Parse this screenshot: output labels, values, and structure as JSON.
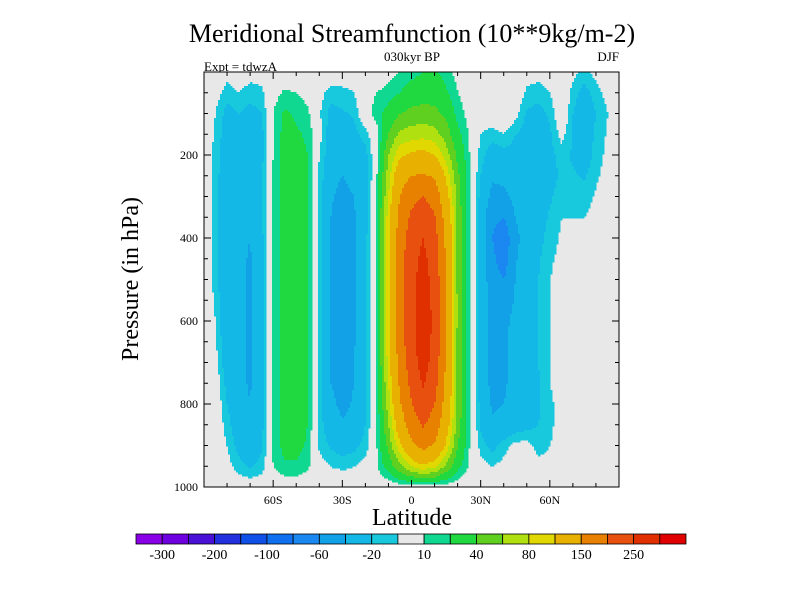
{
  "chart_data": {
    "type": "heatmap",
    "title": "Meridional Streamfunction (10**9kg/m-2)",
    "subtitle": "030kyr BP",
    "left_label": "Expt = tdwzA",
    "right_label": "DJF",
    "xlabel": "Latitude",
    "ylabel": "Pressure (in hPa)",
    "xlim": [
      -90,
      90
    ],
    "ylim": [
      1000,
      0
    ],
    "x_ticks": [
      {
        "value": -60,
        "label": "60S"
      },
      {
        "value": -30,
        "label": "30S"
      },
      {
        "value": 0,
        "label": "0"
      },
      {
        "value": 30,
        "label": "30N"
      },
      {
        "value": 60,
        "label": "60N"
      }
    ],
    "y_ticks": [
      {
        "value": 200,
        "label": "200"
      },
      {
        "value": 400,
        "label": "400"
      },
      {
        "value": 600,
        "label": "600"
      },
      {
        "value": 800,
        "label": "800"
      },
      {
        "value": 1000,
        "label": "1000"
      }
    ],
    "levels": [
      -300,
      -250,
      -200,
      -150,
      -100,
      -80,
      -60,
      -40,
      -20,
      -10,
      10,
      20,
      40,
      60,
      80,
      100,
      150,
      200,
      250,
      300
    ],
    "colors": [
      "#8a00e6",
      "#6e00e0",
      "#4a10d8",
      "#2230e0",
      "#1050e8",
      "#1070f0",
      "#1a88f0",
      "#12a0e6",
      "#14b8e6",
      "#18c8dc",
      "#e8e8e8",
      "#10d890",
      "#20d840",
      "#60d020",
      "#b0e010",
      "#e0d800",
      "#e8b000",
      "#e88000",
      "#e85010",
      "#e03000",
      "#e00000"
    ],
    "colorbar_labels": [
      {
        "level": -300,
        "label": "-300"
      },
      {
        "level": -200,
        "label": "-200"
      },
      {
        "level": -100,
        "label": "-100"
      },
      {
        "level": -60,
        "label": "-60"
      },
      {
        "level": -20,
        "label": "-20"
      },
      {
        "level": 10,
        "label": "10"
      },
      {
        "level": 40,
        "label": "40"
      },
      {
        "level": 80,
        "label": "80"
      },
      {
        "level": 150,
        "label": "150"
      },
      {
        "level": 250,
        "label": "250"
      }
    ],
    "field_latitudes": [
      -90,
      -85,
      -80,
      -75,
      -70,
      -65,
      -60,
      -55,
      -50,
      -45,
      -40,
      -35,
      -30,
      -25,
      -20,
      -15,
      -10,
      -5,
      0,
      5,
      10,
      15,
      20,
      25,
      30,
      35,
      40,
      45,
      50,
      55,
      60,
      65,
      70,
      75,
      80,
      85,
      90
    ],
    "field_pressures": [
      0,
      50,
      100,
      150,
      200,
      250,
      300,
      350,
      400,
      450,
      500,
      550,
      600,
      650,
      700,
      750,
      800,
      850,
      900,
      950,
      1000
    ],
    "field_values": [
      [
        0,
        0,
        -5,
        0,
        -5,
        -5,
        0,
        0,
        0,
        5,
        0,
        0,
        -5,
        -5,
        0,
        0,
        5,
        10,
        15,
        20,
        22,
        15,
        5,
        0,
        0,
        0,
        0,
        0,
        -5,
        -5,
        0,
        0,
        -5,
        -15,
        -5,
        0,
        0
      ],
      [
        0,
        -5,
        -15,
        -10,
        -15,
        -12,
        5,
        12,
        10,
        5,
        -5,
        -15,
        -12,
        -10,
        5,
        10,
        15,
        20,
        28,
        30,
        32,
        22,
        10,
        5,
        0,
        0,
        5,
        0,
        -12,
        -15,
        -10,
        5,
        -15,
        -25,
        -15,
        -5,
        0
      ],
      [
        0,
        -10,
        -25,
        -20,
        -25,
        -20,
        10,
        22,
        18,
        12,
        -8,
        -25,
        -22,
        -18,
        5,
        15,
        25,
        40,
        45,
        48,
        45,
        35,
        15,
        5,
        0,
        0,
        5,
        -5,
        -22,
        -25,
        -18,
        5,
        -20,
        -30,
        -20,
        -10,
        0
      ],
      [
        0,
        -12,
        -28,
        -25,
        -30,
        -25,
        10,
        25,
        22,
        18,
        -5,
        -28,
        -28,
        -25,
        -15,
        5,
        40,
        65,
        70,
        72,
        68,
        50,
        25,
        8,
        -10,
        -15,
        -10,
        -20,
        -25,
        -28,
        -22,
        -5,
        -20,
        -28,
        -18,
        -8,
        0
      ],
      [
        0,
        -14,
        -30,
        -28,
        -32,
        -25,
        10,
        25,
        25,
        20,
        -10,
        -30,
        -35,
        -30,
        -25,
        5,
        60,
        95,
        105,
        110,
        100,
        70,
        35,
        10,
        -15,
        -28,
        -25,
        -25,
        -30,
        -30,
        -25,
        -15,
        -22,
        -28,
        -16,
        -6,
        0
      ],
      [
        0,
        -15,
        -32,
        -30,
        -35,
        -22,
        12,
        25,
        25,
        20,
        -12,
        -35,
        -40,
        -35,
        -30,
        10,
        70,
        130,
        150,
        155,
        145,
        95,
        45,
        10,
        -20,
        -38,
        -35,
        -30,
        -32,
        -30,
        -25,
        -18,
        -18,
        -22,
        -12,
        -4,
        0
      ],
      [
        0,
        -15,
        -35,
        -32,
        -38,
        -22,
        12,
        25,
        25,
        20,
        -15,
        -38,
        -45,
        -40,
        -30,
        15,
        80,
        150,
        185,
        200,
        180,
        115,
        50,
        10,
        -25,
        -45,
        -45,
        -35,
        -32,
        -30,
        -22,
        -15,
        -12,
        -15,
        -8,
        -2,
        0
      ],
      [
        0,
        -15,
        -38,
        -35,
        -40,
        -22,
        12,
        25,
        25,
        20,
        -15,
        -40,
        -50,
        -42,
        -28,
        15,
        90,
        165,
        210,
        230,
        205,
        130,
        55,
        12,
        -28,
        -55,
        -60,
        -40,
        -32,
        -28,
        -18,
        -10,
        -10,
        -10,
        -5,
        0,
        0
      ],
      [
        0,
        -15,
        -38,
        -35,
        -40,
        -25,
        12,
        25,
        25,
        20,
        -15,
        -40,
        -50,
        -42,
        -25,
        15,
        95,
        175,
        225,
        250,
        220,
        140,
        55,
        12,
        -28,
        -60,
        -75,
        -45,
        -32,
        -25,
        -15,
        -8,
        -5,
        0,
        0,
        0,
        0
      ],
      [
        0,
        -14,
        -38,
        -35,
        -42,
        -25,
        12,
        25,
        25,
        20,
        -15,
        -42,
        -52,
        -42,
        -25,
        15,
        95,
        180,
        232,
        262,
        228,
        145,
        55,
        10,
        -28,
        -55,
        -72,
        -42,
        -30,
        -22,
        -12,
        -6,
        -3,
        0,
        0,
        0,
        0
      ],
      [
        0,
        -14,
        -38,
        -35,
        -42,
        -25,
        12,
        25,
        25,
        20,
        -15,
        -42,
        -52,
        -42,
        -25,
        15,
        95,
        182,
        236,
        270,
        234,
        148,
        55,
        10,
        -28,
        -50,
        -60,
        -40,
        -28,
        -20,
        -10,
        -5,
        0,
        0,
        0,
        0,
        0
      ],
      [
        0,
        -12,
        -36,
        -35,
        -42,
        -25,
        12,
        25,
        25,
        20,
        -15,
        -42,
        -52,
        -42,
        -25,
        15,
        95,
        182,
        238,
        274,
        238,
        150,
        55,
        10,
        -28,
        -48,
        -52,
        -38,
        -28,
        -20,
        -10,
        -5,
        0,
        0,
        0,
        0,
        0
      ],
      [
        0,
        -10,
        -35,
        -35,
        -42,
        -25,
        12,
        25,
        25,
        20,
        -15,
        -42,
        -52,
        -42,
        -25,
        15,
        95,
        180,
        238,
        276,
        240,
        150,
        55,
        10,
        -28,
        -45,
        -45,
        -35,
        -28,
        -20,
        -10,
        -5,
        0,
        0,
        0,
        0,
        0
      ],
      [
        0,
        -8,
        -32,
        -35,
        -42,
        -25,
        12,
        25,
        25,
        20,
        -15,
        -42,
        -50,
        -42,
        -25,
        15,
        92,
        175,
        235,
        275,
        238,
        148,
        55,
        10,
        -28,
        -45,
        -42,
        -35,
        -28,
        -20,
        -10,
        -5,
        0,
        0,
        0,
        0,
        0
      ],
      [
        0,
        -5,
        -30,
        -35,
        -42,
        -25,
        12,
        25,
        25,
        20,
        -15,
        -40,
        -50,
        -40,
        -25,
        15,
        88,
        168,
        228,
        270,
        232,
        145,
        55,
        10,
        -28,
        -45,
        -42,
        -35,
        -28,
        -20,
        -10,
        -5,
        0,
        0,
        0,
        0,
        0
      ],
      [
        0,
        0,
        -25,
        -35,
        -42,
        -25,
        12,
        25,
        25,
        20,
        -15,
        -40,
        -48,
        -40,
        -25,
        12,
        80,
        158,
        215,
        255,
        220,
        138,
        55,
        10,
        -28,
        -45,
        -42,
        -35,
        -28,
        -22,
        -10,
        -5,
        0,
        0,
        0,
        0,
        0
      ],
      [
        0,
        0,
        -20,
        -32,
        -40,
        -25,
        12,
        25,
        25,
        20,
        -15,
        -35,
        -45,
        -38,
        -22,
        10,
        70,
        145,
        198,
        232,
        200,
        130,
        55,
        12,
        -25,
        -42,
        -40,
        -35,
        -28,
        -22,
        -12,
        -5,
        0,
        0,
        0,
        0,
        0
      ],
      [
        0,
        0,
        -15,
        -30,
        -40,
        -25,
        12,
        25,
        25,
        20,
        -15,
        -30,
        -38,
        -35,
        -20,
        10,
        60,
        125,
        175,
        205,
        178,
        118,
        50,
        12,
        -22,
        -38,
        -35,
        -30,
        -25,
        -20,
        -12,
        -5,
        0,
        0,
        0,
        0,
        0
      ],
      [
        0,
        0,
        -10,
        -25,
        -35,
        -22,
        12,
        25,
        25,
        18,
        -12,
        -22,
        -28,
        -25,
        -15,
        10,
        45,
        95,
        140,
        165,
        145,
        95,
        40,
        10,
        -15,
        -25,
        -15,
        -5,
        -5,
        -15,
        -10,
        -5,
        0,
        0,
        0,
        0,
        0
      ],
      [
        0,
        0,
        -5,
        -15,
        -22,
        -15,
        10,
        18,
        18,
        12,
        -5,
        -10,
        -12,
        -10,
        -5,
        8,
        28,
        55,
        80,
        95,
        85,
        55,
        25,
        8,
        -5,
        -10,
        -5,
        0,
        0,
        -5,
        -5,
        0,
        0,
        0,
        0,
        0,
        0
      ],
      [
        0,
        0,
        0,
        0,
        0,
        0,
        0,
        0,
        0,
        0,
        0,
        0,
        0,
        0,
        0,
        0,
        0,
        0,
        0,
        0,
        0,
        0,
        0,
        0,
        0,
        0,
        0,
        0,
        0,
        0,
        0,
        0,
        0,
        0,
        0,
        0,
        0
      ]
    ]
  }
}
